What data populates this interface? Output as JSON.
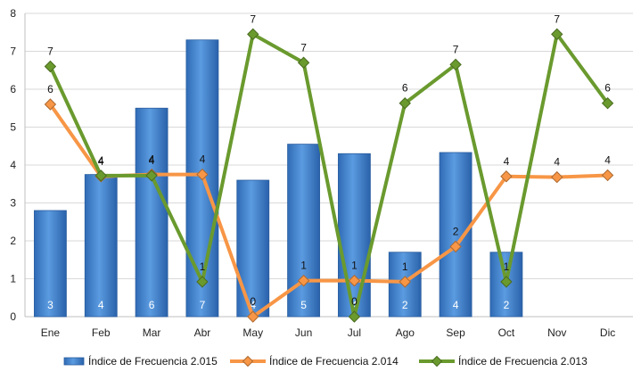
{
  "chart_data": {
    "type": "bar",
    "title": "",
    "xlabel": "",
    "ylabel": "",
    "ylim": [
      0,
      8
    ],
    "yticks": [
      0,
      1,
      2,
      3,
      4,
      5,
      6,
      7,
      8
    ],
    "grid": "horizontal",
    "legend_position": "bottom",
    "categories": [
      "Ene",
      "Feb",
      "Mar",
      "Abr",
      "May",
      "Jun",
      "Jul",
      "Ago",
      "Sep",
      "Oct",
      "Nov",
      "Dic"
    ],
    "series": [
      {
        "name": "Índice de Frecuencia 2.015",
        "type": "bar",
        "color": "#4a86d0",
        "values": [
          2.8,
          3.75,
          5.5,
          7.3,
          3.6,
          4.55,
          4.3,
          1.7,
          4.33,
          1.7,
          null,
          null
        ],
        "labels": [
          "3",
          "4",
          "6",
          "7",
          "4",
          "5",
          "4",
          "2",
          "4",
          "2",
          "",
          ""
        ]
      },
      {
        "name": "Índice de Frecuencia 2.014",
        "type": "line",
        "color": "#f79646",
        "marker": "diamond",
        "values": [
          5.6,
          3.7,
          3.75,
          3.75,
          0.0,
          0.95,
          0.95,
          0.92,
          1.85,
          3.7,
          3.68,
          3.73
        ],
        "labels": [
          "6",
          "4",
          "4",
          "4",
          "0",
          "1",
          "1",
          "1",
          "2",
          "4",
          "4",
          "4"
        ]
      },
      {
        "name": "Índice de Frecuencia 2.013",
        "type": "line",
        "color": "#6a9a2e",
        "marker": "diamond",
        "values": [
          6.6,
          3.72,
          3.72,
          0.92,
          7.45,
          6.7,
          0.0,
          5.63,
          6.65,
          0.92,
          7.45,
          5.63
        ],
        "labels": [
          "7",
          "4",
          "4",
          "1",
          "7",
          "7",
          "0",
          "6",
          "7",
          "1",
          "7",
          "6"
        ]
      }
    ]
  }
}
